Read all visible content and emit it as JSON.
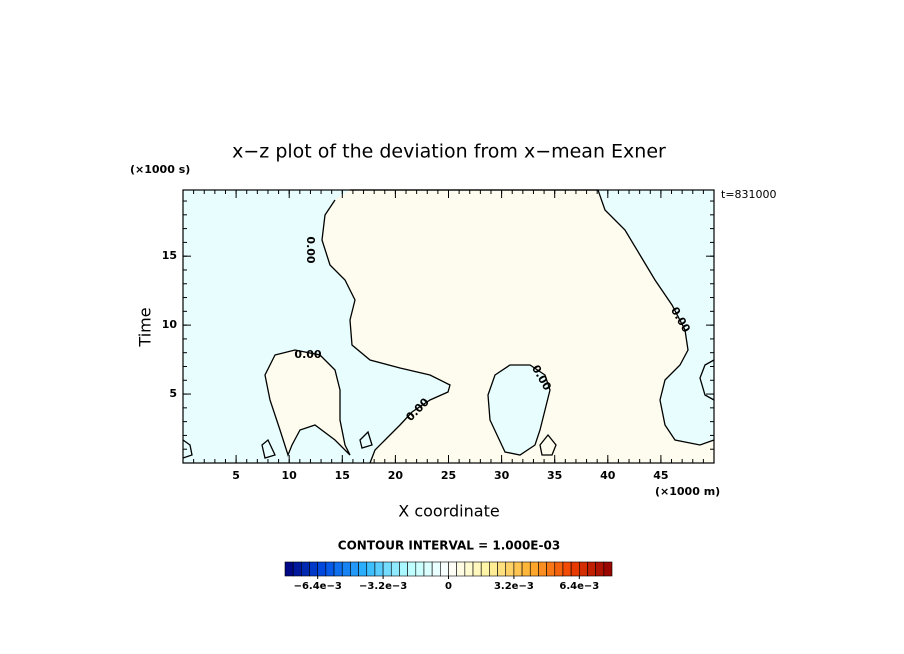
{
  "chart_data": {
    "type": "contour",
    "title": "x−z plot of the deviation from x−mean Exner",
    "x_label": "X coordinate",
    "y_label": "Time",
    "x_unit": "(×1000 m)",
    "y_unit": "(×1000 s)",
    "time_label": "t=831000",
    "xlim": [
      0,
      50
    ],
    "ylim": [
      0,
      19.8
    ],
    "xticks": [
      5,
      10,
      15,
      20,
      25,
      30,
      35,
      40,
      45
    ],
    "yticks": [
      5,
      10,
      15
    ],
    "negative_color": "#e8fdfd",
    "positive_color": "#fefcee",
    "contour_levels": [
      {
        "value": 0,
        "label": "0.00"
      }
    ],
    "contour_interval_label": "CONTOUR INTERVAL = 1.000E-03",
    "colorbar": {
      "lim": [
        -0.008,
        0.008
      ],
      "boxes": 40,
      "colormap": [
        "#00007a",
        "#0050e8",
        "#30b8ff",
        "#b8ffff",
        "#ffffff",
        "#fff4a0",
        "#ffb030",
        "#f04000",
        "#900000"
      ],
      "ticks": [
        {
          "value": -0.0064,
          "label": "−6.4e−3"
        },
        {
          "value": -0.0032,
          "label": "−3.2e−3"
        },
        {
          "value": 0,
          "label": "0"
        },
        {
          "value": 0.0032,
          "label": "3.2e−3"
        },
        {
          "value": 0.0064,
          "label": "6.4e−3"
        }
      ]
    }
  }
}
